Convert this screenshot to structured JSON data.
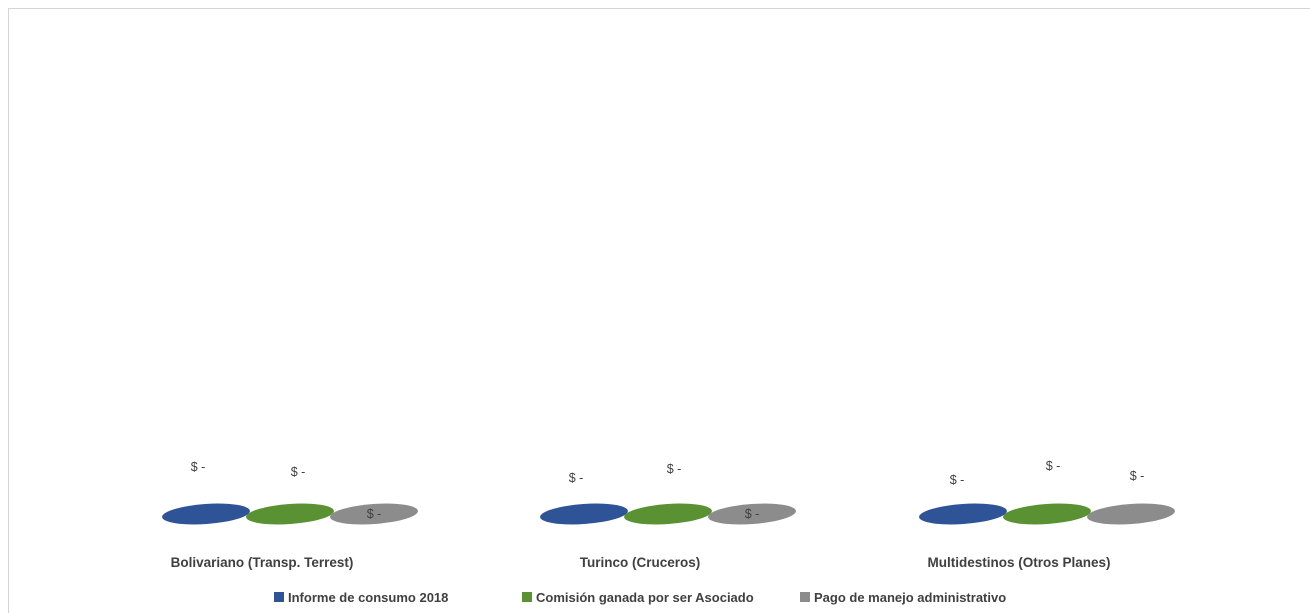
{
  "chart_data": {
    "type": "bar",
    "categories": [
      "Bolivariano (Transp. Terrest)",
      "Turinco (Cruceros)",
      "Multidestinos (Otros Planes)"
    ],
    "series": [
      {
        "name": "Informe de consumo 2018",
        "color": "#2E5396",
        "values": [
          0,
          0,
          0
        ],
        "labels": [
          "$ -",
          "$ -",
          "$ -"
        ]
      },
      {
        "name": "Comisión ganada por ser Asociado",
        "color": "#5A9133",
        "values": [
          0,
          0,
          0
        ],
        "labels": [
          "$ -",
          "$ -",
          "$ -"
        ]
      },
      {
        "name": "Pago de manejo administrativo",
        "color": "#8C8C8C",
        "values": [
          0,
          0,
          0
        ],
        "labels": [
          "$ -",
          "$ -",
          "$ -"
        ]
      }
    ],
    "legend_position": "bottom",
    "grid": false
  }
}
